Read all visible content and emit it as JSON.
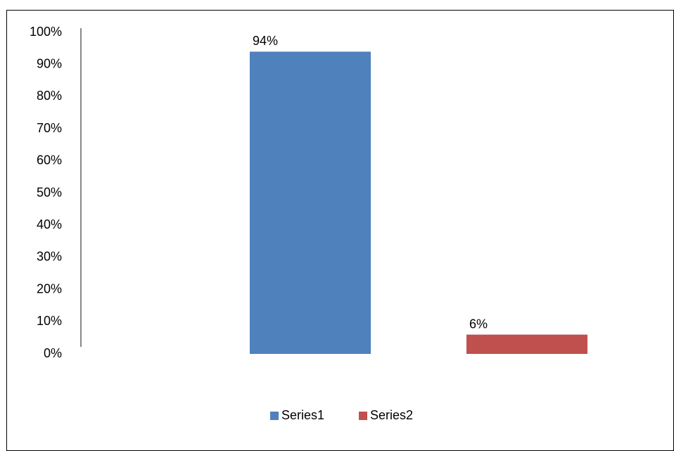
{
  "chart_data": {
    "type": "bar",
    "categories": [
      null
    ],
    "series": [
      {
        "name": "Series1",
        "color": "#4f81bd",
        "values": [
          94
        ],
        "value_labels": [
          "94%"
        ]
      },
      {
        "name": "Series2",
        "color": "#c0504d",
        "values": [
          6
        ],
        "value_labels": [
          "6%"
        ]
      }
    ],
    "ylim": [
      0,
      100
    ],
    "yticks": [
      {
        "value": 0,
        "label": "0%"
      },
      {
        "value": 10,
        "label": "10%"
      },
      {
        "value": 20,
        "label": "20%"
      },
      {
        "value": 30,
        "label": "30%"
      },
      {
        "value": 40,
        "label": "40%"
      },
      {
        "value": 50,
        "label": "50%"
      },
      {
        "value": 60,
        "label": "60%"
      },
      {
        "value": 70,
        "label": "70%"
      },
      {
        "value": 80,
        "label": "80%"
      },
      {
        "value": 90,
        "label": "90%"
      },
      {
        "value": 100,
        "label": "100%"
      }
    ],
    "grid": false,
    "legend": "bottom"
  }
}
